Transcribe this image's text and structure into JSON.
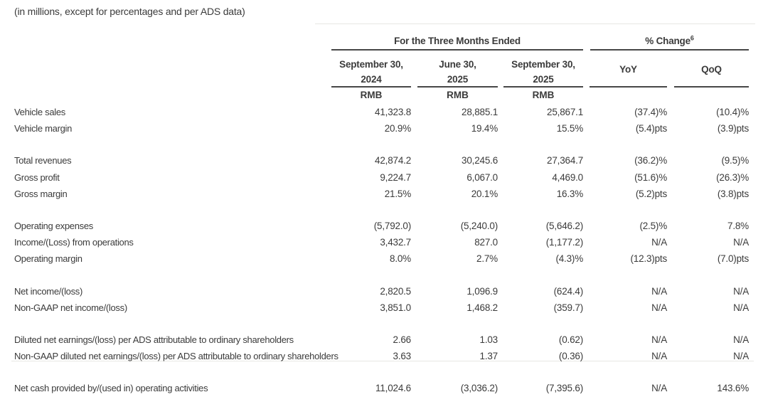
{
  "caption": "(in millions, except for percentages and per ADS data)",
  "header": {
    "group1": "For the Three Months Ended",
    "group2": "% Change",
    "group2_superscript": "6",
    "columns": [
      {
        "line1": "September 30,",
        "line2": "2024",
        "unit": "RMB"
      },
      {
        "line1": "June 30,",
        "line2": "2025",
        "unit": "RMB"
      },
      {
        "line1": "September 30,",
        "line2": "2025",
        "unit": "RMB"
      },
      {
        "line1": "YoY"
      },
      {
        "line1": "QoQ"
      }
    ]
  },
  "rows": [
    {
      "label": "Vehicle sales",
      "values": [
        "41,323.8",
        "28,885.1",
        "25,867.1",
        "(37.4)%",
        "(10.4)%"
      ]
    },
    {
      "label": "Vehicle margin",
      "values": [
        "20.9%",
        "19.4%",
        "15.5%",
        "(5.4)pts",
        "(3.9)pts"
      ]
    },
    {
      "label": "Total revenues",
      "gap": true,
      "values": [
        "42,874.2",
        "30,245.6",
        "27,364.7",
        "(36.2)%",
        "(9.5)%"
      ]
    },
    {
      "label": "Gross profit",
      "values": [
        "9,224.7",
        "6,067.0",
        "4,469.0",
        "(51.6)%",
        "(26.3)%"
      ]
    },
    {
      "label": "Gross margin",
      "values": [
        "21.5%",
        "20.1%",
        "16.3%",
        "(5.2)pts",
        "(3.8)pts"
      ]
    },
    {
      "label": "Operating expenses",
      "gap": true,
      "values": [
        "(5,792.0)",
        "(5,240.0)",
        "(5,646.2)",
        "(2.5)%",
        "7.8%"
      ]
    },
    {
      "label": "Income/(Loss) from operations",
      "values": [
        "3,432.7",
        "827.0",
        "(1,177.2)",
        "N/A",
        "N/A"
      ]
    },
    {
      "label": "Operating margin",
      "values": [
        "8.0%",
        "2.7%",
        "(4.3)%",
        "(12.3)pts",
        "(7.0)pts"
      ]
    },
    {
      "label": "Net income/(loss)",
      "gap": true,
      "values": [
        "2,820.5",
        "1,096.9",
        "(624.4)",
        "N/A",
        "N/A"
      ]
    },
    {
      "label": "Non-GAAP net income/(loss)",
      "values": [
        "3,851.0",
        "1,468.2",
        "(359.7)",
        "N/A",
        "N/A"
      ]
    },
    {
      "label": "Diluted net earnings/(loss) per ADS attributable to ordinary shareholders",
      "gap": true,
      "values": [
        "2.66",
        "1.03",
        "(0.62)",
        "N/A",
        "N/A"
      ]
    },
    {
      "label": "Non-GAAP diluted net earnings/(loss) per ADS attributable to ordinary shareholders",
      "values": [
        "3.63",
        "1.37",
        "(0.36)",
        "N/A",
        "N/A"
      ]
    },
    {
      "label": "Net cash provided by/(used in) operating activities",
      "divider_before": true,
      "values": [
        "11,024.6",
        "(3,036.2)",
        "(7,395.6)",
        "N/A",
        "143.6%"
      ]
    }
  ],
  "colors": {
    "text": "#3b3b3b",
    "rule_dark": "#474747",
    "rule_light": "#e7e7e3",
    "background": "#ffffff"
  }
}
